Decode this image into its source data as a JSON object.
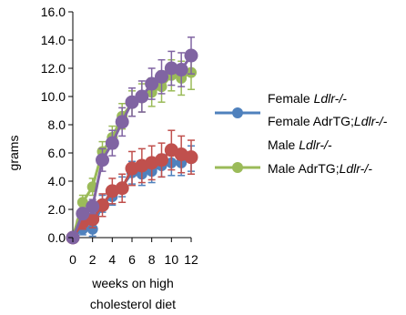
{
  "chart_data": {
    "type": "line",
    "xlabel": [
      "weeks on high",
      "cholesterol diet"
    ],
    "ylabel": "grams",
    "xlim": [
      0,
      12
    ],
    "ylim": [
      0,
      16
    ],
    "xticks": [
      "0",
      "2",
      "4",
      "6",
      "8",
      "10",
      "12"
    ],
    "yticks": [
      "0.0",
      "2.0",
      "4.0",
      "6.0",
      "8.0",
      "10.0",
      "12.0",
      "14.0",
      "16.0"
    ],
    "grid": false,
    "legend_position": "right",
    "series": [
      {
        "name": "Female Ldlr-/-",
        "name_parts": [
          {
            "t": "Female ",
            "i": false
          },
          {
            "t": "Ldlr-/-",
            "i": true
          }
        ],
        "color": "#4f81bd",
        "marker_size": "small",
        "x": [
          0,
          1,
          2,
          3,
          4,
          5,
          6,
          7,
          8,
          9,
          10,
          11,
          12
        ],
        "y": [
          0.0,
          0.6,
          0.6,
          2.4,
          2.9,
          3.6,
          4.6,
          4.5,
          4.7,
          5.1,
          5.3,
          5.3,
          5.6
        ],
        "err": [
          0,
          0.4,
          0.5,
          0.6,
          0.6,
          0.7,
          0.8,
          0.8,
          0.8,
          0.8,
          0.9,
          0.9,
          0.9
        ]
      },
      {
        "name": "Female AdrTG;Ldlr-/-",
        "name_parts": [
          {
            "t": "Female AdrTG;",
            "i": false
          },
          {
            "t": "Ldlr-/-",
            "i": true
          }
        ],
        "color": "#c0504d",
        "marker_size": "large",
        "x": [
          0,
          1,
          2,
          3,
          4,
          5,
          6,
          7,
          8,
          9,
          10,
          11,
          12
        ],
        "y": [
          0.0,
          1.1,
          1.3,
          2.3,
          3.3,
          3.5,
          4.9,
          5.1,
          5.3,
          5.5,
          6.2,
          5.9,
          5.7
        ],
        "err": [
          0,
          0.5,
          0.6,
          0.8,
          0.9,
          1.0,
          1.2,
          1.2,
          1.2,
          1.2,
          1.4,
          1.3,
          1.2
        ]
      },
      {
        "name": "Male Ldlr-/-",
        "name_parts": [
          {
            "t": "Male ",
            "i": false
          },
          {
            "t": "Ldlr-/-",
            "i": true
          }
        ],
        "color": "#9bbb59",
        "marker_size": "small",
        "x": [
          0,
          1,
          2,
          3,
          4,
          5,
          6,
          7,
          8,
          9,
          10,
          11,
          12
        ],
        "y": [
          0.0,
          2.5,
          3.6,
          6.1,
          7.1,
          8.6,
          9.5,
          9.9,
          10.3,
          10.7,
          11.5,
          11.3,
          11.7
        ],
        "err": [
          0,
          0.5,
          0.6,
          0.7,
          0.8,
          0.9,
          0.9,
          1.0,
          1.0,
          1.1,
          1.1,
          1.2,
          1.2
        ]
      },
      {
        "name": "Male AdrTG;Ldlr-/-",
        "name_parts": [
          {
            "t": "Male AdrTG;",
            "i": false
          },
          {
            "t": "Ldlr-/-",
            "i": true
          }
        ],
        "color": "#8064a2",
        "marker_size": "large",
        "x": [
          0,
          1,
          2,
          3,
          4,
          5,
          6,
          7,
          8,
          9,
          10,
          11,
          12
        ],
        "y": [
          0.0,
          1.7,
          2.2,
          5.5,
          6.7,
          8.2,
          9.6,
          10.0,
          10.9,
          11.4,
          12.0,
          11.9,
          12.9
        ],
        "err": [
          0,
          0.4,
          0.5,
          0.8,
          0.9,
          1.0,
          1.0,
          1.1,
          1.1,
          1.2,
          1.2,
          1.2,
          1.3
        ]
      }
    ]
  }
}
